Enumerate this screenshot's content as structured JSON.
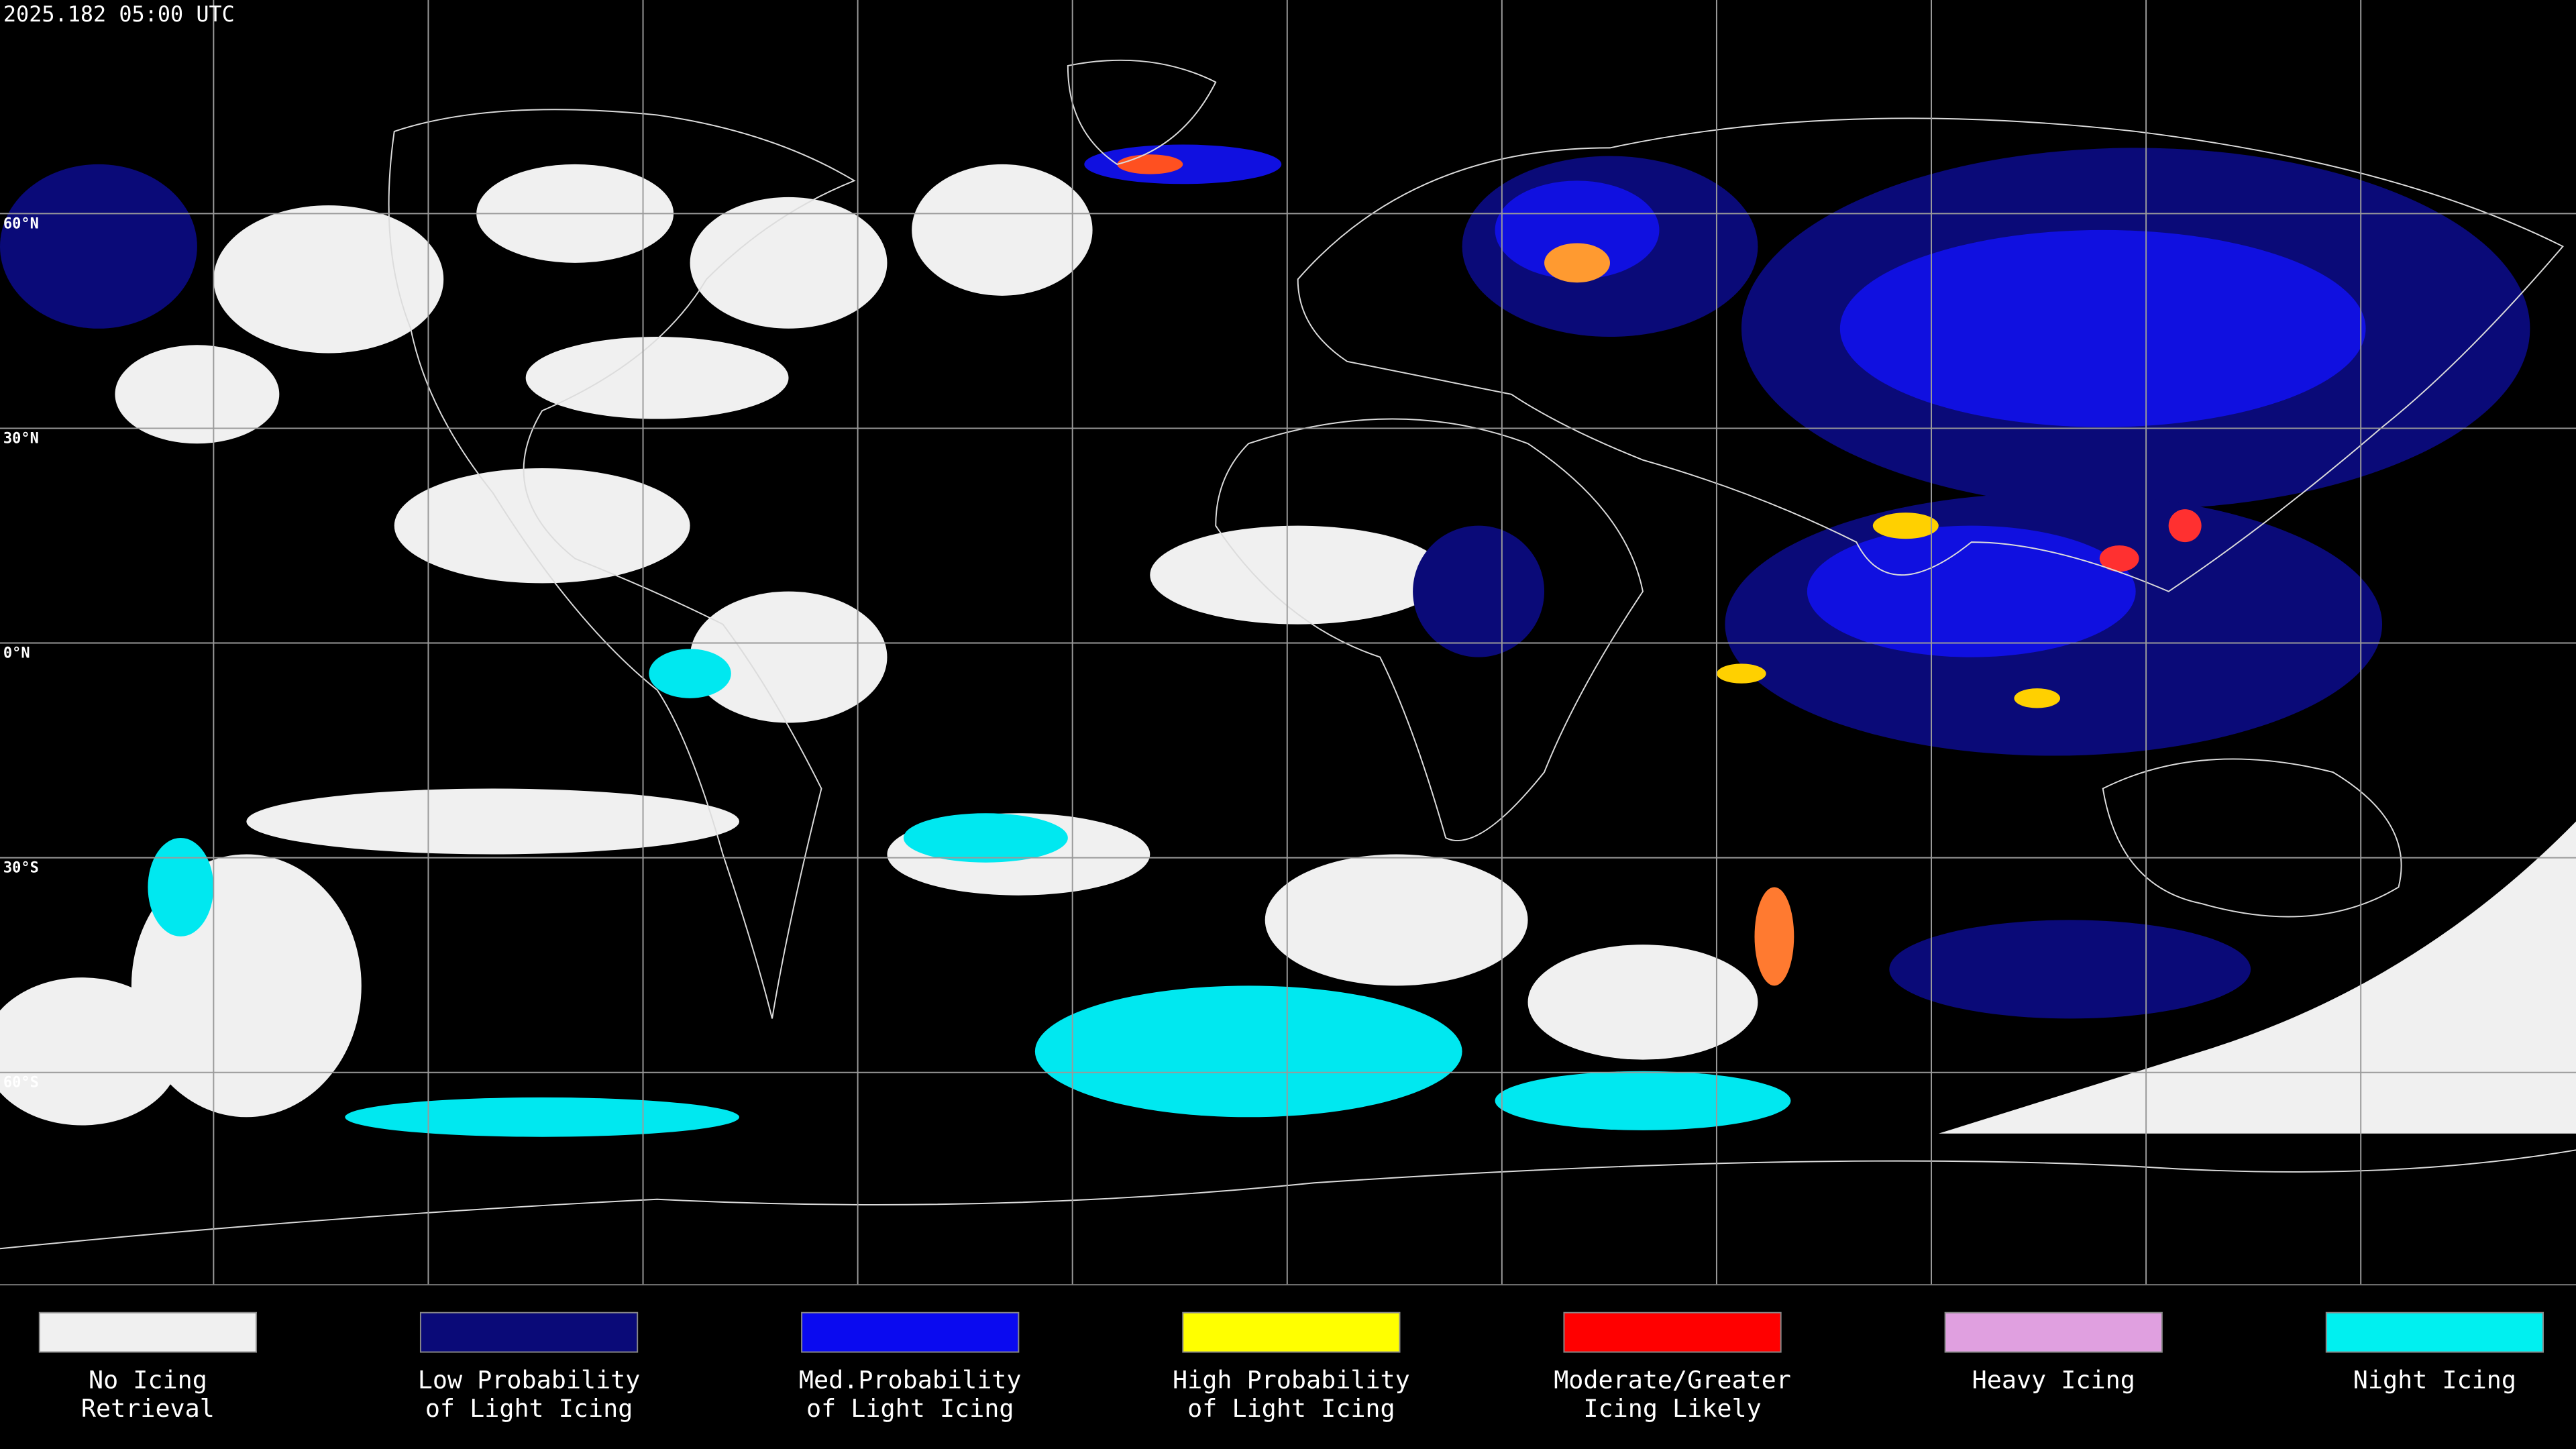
{
  "header": {
    "title": "2025.182 05:00 UTC"
  },
  "map": {
    "latitude_labels": [
      "60°N",
      "30°N",
      "0°N",
      "30°S",
      "60°S"
    ]
  },
  "legend": {
    "items": [
      {
        "lines": [
          "No Icing",
          "Retrieval"
        ],
        "color": "#f0f0f0"
      },
      {
        "lines": [
          "Low Probability",
          "of Light Icing"
        ],
        "color": "#0a0a78"
      },
      {
        "lines": [
          "Med.Probability",
          "of Light Icing"
        ],
        "color": "#0a0af0"
      },
      {
        "lines": [
          "High Probability",
          "of Light Icing"
        ],
        "color": "#ffff00"
      },
      {
        "lines": [
          "Moderate/Greater",
          "Icing Likely"
        ],
        "color": "#ff0000"
      },
      {
        "lines": [
          "Heavy Icing"
        ],
        "color": "#e0a0e0"
      },
      {
        "lines": [
          "Night Icing"
        ],
        "color": "#00f0f0"
      }
    ]
  }
}
